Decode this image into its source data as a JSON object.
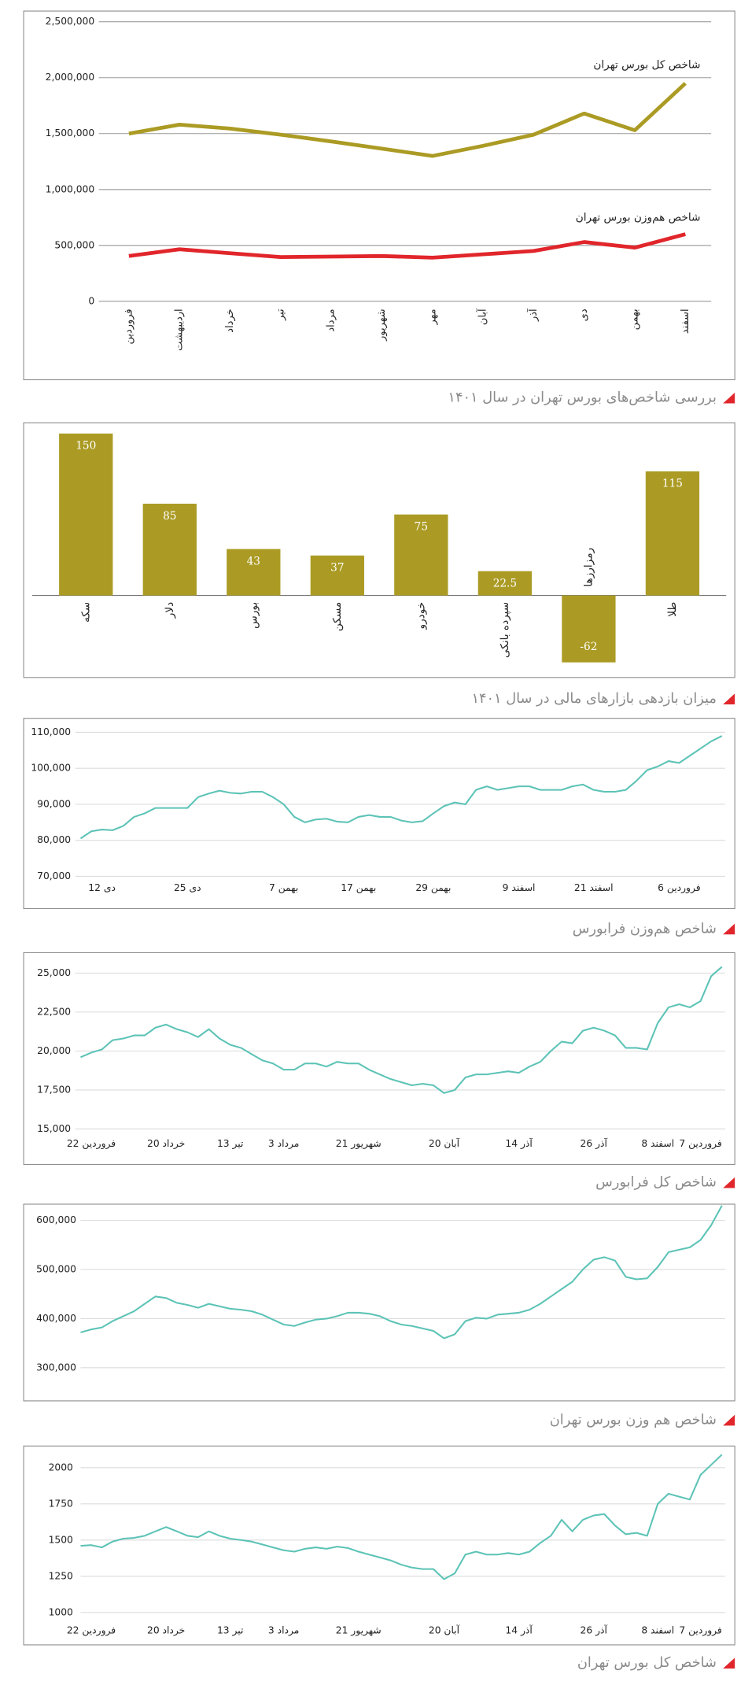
{
  "chart_data": [
    {
      "type": "line",
      "title": "بررسی شاخص‌های بورس تهران در سال ۱۴۰۱",
      "categories": [
        "فروردین",
        "اردیبهشت",
        "خرداد",
        "تیر",
        "مرداد",
        "شهریور",
        "مهر",
        "آبان",
        "آذر",
        "دی",
        "بهمن",
        "اسفند"
      ],
      "series": [
        {
          "name": "شاخص کل بورس تهران",
          "color": "#ab9b24",
          "values": [
            1500000,
            1580000,
            1545000,
            1490000,
            1430000,
            1365000,
            1300000,
            1390000,
            1490000,
            1680000,
            1530000,
            1950000
          ]
        },
        {
          "name": "شاخص هم‌وزن بورس تهران",
          "color": "#e1262b",
          "values": [
            405000,
            465000,
            430000,
            395000,
            400000,
            405000,
            390000,
            420000,
            450000,
            530000,
            480000,
            600000
          ]
        }
      ],
      "ylim": [
        0,
        2500000
      ],
      "yticks": [
        0,
        {
          "value": 500000,
          "label": "500,000"
        },
        {
          "value": 1000000,
          "label": "1,000,000"
        },
        {
          "value": 1500000,
          "label": "1,500,000"
        },
        {
          "value": 2000000,
          "label": "2,000,000"
        },
        {
          "value": 2500000,
          "label": "2,500,000"
        }
      ],
      "grid": true
    },
    {
      "type": "bar",
      "title": "میزان بازدهی بازارهای مالی در سال ۱۴۰۱",
      "categories": [
        "سکه",
        "دلار",
        "بورس",
        "مسکن",
        "خودرو",
        "سپرده بانکی",
        "رمزارزها",
        "طلا"
      ],
      "values": [
        150,
        85,
        43,
        37,
        75,
        22.5,
        -62,
        115
      ],
      "color": "#ab9b24",
      "ylim": [
        -76,
        160
      ]
    },
    {
      "type": "line",
      "title": "شاخص هم‌وزن فرابورس",
      "categories": [
        null,
        null,
        "12 دی",
        null,
        null,
        null,
        null,
        null,
        null,
        null,
        "25 دی",
        null,
        null,
        null,
        null,
        null,
        null,
        null,
        null,
        "7 بهمن",
        null,
        null,
        null,
        null,
        null,
        null,
        "17 بهمن",
        null,
        null,
        null,
        null,
        null,
        null,
        "29 بهمن",
        null,
        null,
        null,
        null,
        null,
        null,
        null,
        "9 اسفند",
        null,
        null,
        null,
        null,
        null,
        null,
        "21 اسفند",
        null,
        null,
        null,
        null,
        null,
        null,
        null,
        "6 فروردین",
        null,
        null,
        null,
        null
      ],
      "series": [
        {
          "color": "#5cc3b6",
          "values": [
            80500,
            82500,
            83000,
            82800,
            84000,
            86500,
            87500,
            89000,
            89000,
            89000,
            89000,
            92000,
            93000,
            93800,
            93200,
            93000,
            93500,
            93500,
            92000,
            90000,
            86500,
            85000,
            85800,
            86000,
            85200,
            85000,
            86500,
            87000,
            86500,
            86500,
            85500,
            85000,
            85300,
            87500,
            89500,
            90500,
            90000,
            94000,
            95000,
            94000,
            94500,
            95000,
            95000,
            94000,
            94000,
            94000,
            95000,
            95500,
            94000,
            93500,
            93500,
            94000,
            96500,
            99500,
            100500,
            102000,
            101500,
            103500,
            105500,
            107500,
            109000
          ]
        }
      ],
      "ylim": [
        70000,
        110000
      ],
      "yticks": [
        {
          "value": 70000,
          "label": "70,000"
        },
        {
          "value": 80000,
          "label": "80,000"
        },
        {
          "value": 90000,
          "label": "90,000"
        },
        {
          "value": 100000,
          "label": "100,000"
        },
        {
          "value": 110000,
          "label": "110,000"
        }
      ],
      "grid": true
    },
    {
      "type": "line",
      "title": "شاخص کل فرابورس",
      "categories": [
        null,
        "22 فروردین",
        null,
        null,
        null,
        null,
        null,
        null,
        "20 خرداد",
        null,
        null,
        null,
        null,
        null,
        "13 تیر",
        null,
        null,
        null,
        null,
        "3 مرداد",
        null,
        null,
        null,
        null,
        null,
        null,
        "21 شهریور",
        null,
        null,
        null,
        null,
        null,
        null,
        null,
        "20 آبان",
        null,
        null,
        null,
        null,
        null,
        null,
        "14 آذر",
        null,
        null,
        null,
        null,
        null,
        null,
        "26 آذر",
        null,
        null,
        null,
        null,
        null,
        "8 اسفند",
        null,
        null,
        null,
        "7 فروردین",
        null,
        null
      ],
      "series": [
        {
          "color": "#5cc3b6",
          "values": [
            19600,
            19900,
            20100,
            20700,
            20800,
            21000,
            21000,
            21500,
            21700,
            21400,
            21200,
            20900,
            21400,
            20800,
            20400,
            20200,
            19800,
            19400,
            19200,
            18800,
            18800,
            19200,
            19200,
            19000,
            19300,
            19200,
            19200,
            18800,
            18500,
            18200,
            18000,
            17800,
            17900,
            17800,
            17300,
            17500,
            18300,
            18500,
            18500,
            18600,
            18700,
            18600,
            19000,
            19300,
            20000,
            20600,
            20500,
            21300,
            21500,
            21300,
            21000,
            20200,
            20200,
            20100,
            21800,
            22800,
            23000,
            22800,
            23200,
            24800,
            25400
          ]
        }
      ],
      "ylim": [
        15000,
        25800
      ],
      "yticks": [
        {
          "value": 15000,
          "label": "15,000"
        },
        {
          "value": 17500,
          "label": "17,500"
        },
        {
          "value": 20000,
          "label": "20,000"
        },
        {
          "value": 22500,
          "label": "22,500"
        },
        {
          "value": 25000,
          "label": "25,000"
        }
      ],
      "grid": true
    },
    {
      "type": "line",
      "title": "شاخص هم وزن بورس تهران",
      "series": [
        {
          "color": "#5cc3b6",
          "values": [
            372000,
            378000,
            382000,
            395000,
            405000,
            415000,
            430000,
            445000,
            442000,
            432000,
            428000,
            422000,
            430000,
            425000,
            420000,
            418000,
            415000,
            408000,
            398000,
            388000,
            385000,
            392000,
            398000,
            400000,
            405000,
            412000,
            412000,
            410000,
            405000,
            395000,
            388000,
            385000,
            380000,
            375000,
            360000,
            368000,
            395000,
            402000,
            400000,
            408000,
            410000,
            412000,
            418000,
            430000,
            445000,
            460000,
            475000,
            500000,
            520000,
            525000,
            518000,
            485000,
            480000,
            482000,
            505000,
            535000,
            540000,
            545000,
            560000,
            590000,
            630000
          ]
        }
      ],
      "ylim": [
        272000,
        635000
      ],
      "yticks": [
        {
          "value": 300000,
          "label": "300,000"
        },
        {
          "value": 400000,
          "label": "400,000"
        },
        {
          "value": 500000,
          "label": "500,000"
        },
        {
          "value": 600000,
          "label": "600,000"
        }
      ],
      "grid": true
    },
    {
      "type": "line",
      "title": "شاخص کل بورس تهران",
      "categories": [
        null,
        "22 فروردین",
        null,
        null,
        null,
        null,
        null,
        null,
        "20 خرداد",
        null,
        null,
        null,
        null,
        null,
        "13 تیر",
        null,
        null,
        null,
        null,
        "3 مرداد",
        null,
        null,
        null,
        null,
        null,
        null,
        "21 شهریور",
        null,
        null,
        null,
        null,
        null,
        null,
        null,
        "20 آبان",
        null,
        null,
        null,
        null,
        null,
        null,
        "14 آذر",
        null,
        null,
        null,
        null,
        null,
        null,
        "26 آذر",
        null,
        null,
        null,
        null,
        null,
        "8 اسفند",
        null,
        null,
        null,
        "7 فروردین",
        null,
        null
      ],
      "series": [
        {
          "color": "#5cc3b6",
          "values": [
            1460,
            1465,
            1450,
            1490,
            1510,
            1515,
            1530,
            1560,
            1590,
            1560,
            1530,
            1520,
            1560,
            1530,
            1510,
            1500,
            1490,
            1470,
            1450,
            1430,
            1420,
            1440,
            1450,
            1440,
            1455,
            1445,
            1420,
            1400,
            1380,
            1360,
            1330,
            1310,
            1300,
            1300,
            1230,
            1270,
            1400,
            1420,
            1400,
            1400,
            1410,
            1400,
            1420,
            1480,
            1530,
            1640,
            1560,
            1640,
            1670,
            1680,
            1600,
            1540,
            1550,
            1530,
            1750,
            1820,
            1800,
            1780,
            1950,
            2020,
            2090
          ]
        }
      ],
      "ylim": [
        910,
        2120
      ],
      "yticks": [
        1000,
        1250,
        1500,
        1750,
        2000
      ],
      "grid": true
    }
  ]
}
